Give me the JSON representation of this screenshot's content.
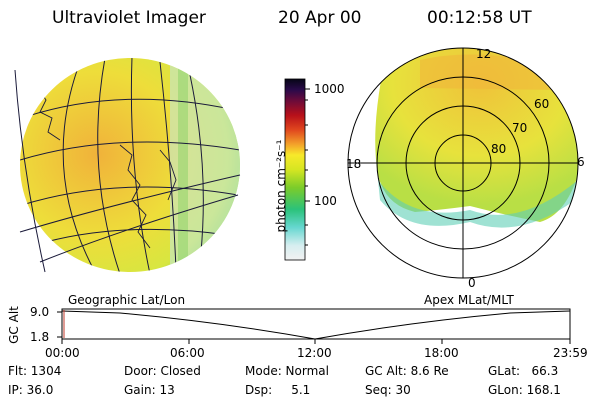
{
  "header": {
    "instrument": "Ultraviolet Imager",
    "date": "20 Apr 00",
    "time": "00:12:58 UT"
  },
  "colorbar": {
    "unit_label": "photon cm⁻²s⁻¹",
    "ticks": [
      "1000",
      "100"
    ]
  },
  "left_panel": {
    "label": "Geographic Lat/Lon"
  },
  "right_panel": {
    "label": "Apex MLat/MLT",
    "mlt_labels": [
      "12",
      "18",
      "6",
      "0"
    ],
    "lat_labels": [
      "60",
      "70",
      "80"
    ]
  },
  "altitude_plot": {
    "ylabel": "GC Alt",
    "y_ticks": [
      "9.0",
      "1.8"
    ],
    "x_ticks": [
      "00:00",
      "06:00",
      "12:00",
      "18:00",
      "23:59"
    ]
  },
  "info": {
    "flt": "Flt: 1304",
    "ip": "IP: 36.0",
    "door": "Door: Closed",
    "gain": "Gain: 13",
    "mode": "Mode: Normal",
    "dsp": "Dsp:     5.1",
    "gc_alt": "GC Alt: 8.6 Re",
    "seq": "Seq: 30",
    "glat": "GLat:   66.3",
    "glon": "GLon: 168.1"
  }
}
